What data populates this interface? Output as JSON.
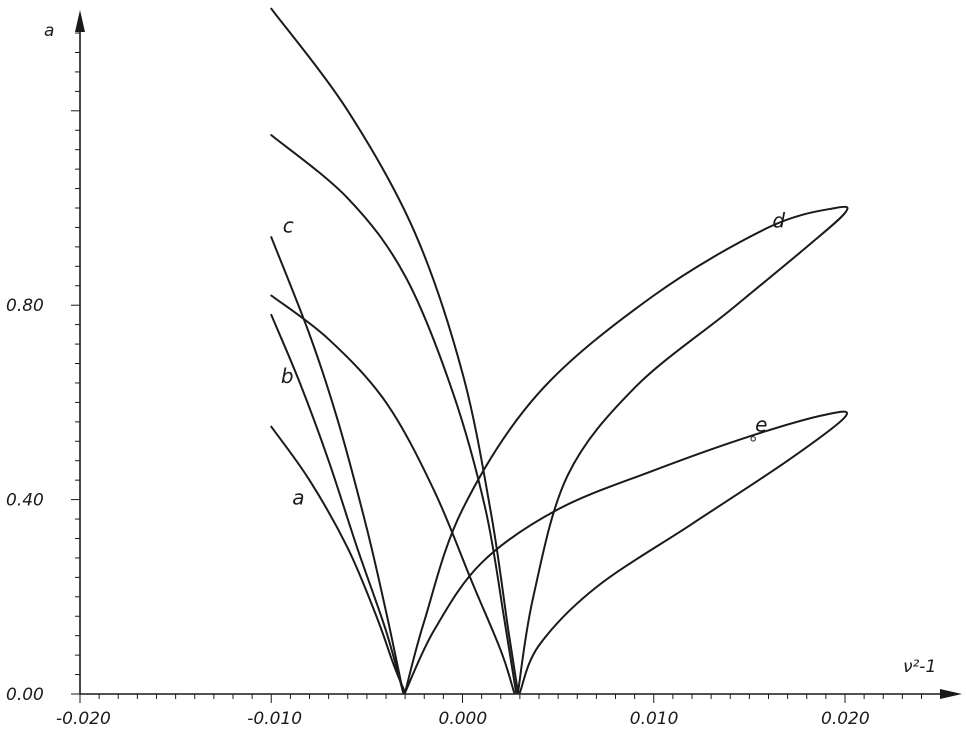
{
  "chart_data": {
    "type": "line",
    "title": "",
    "xlabel": "ν²-1",
    "ylabel": "a",
    "xlim": [
      -0.02,
      0.026
    ],
    "ylim": [
      0.0,
      1.4
    ],
    "grid": false,
    "xticks": [
      -0.02,
      -0.01,
      0.0,
      0.01,
      0.02
    ],
    "xtick_labels": [
      "-0.020",
      "-0.010",
      "0.000",
      "0.010",
      "0.020"
    ],
    "yticks": [
      0.0,
      0.4,
      0.8
    ],
    "ytick_labels": [
      "0.00",
      "0.40",
      "0.80"
    ],
    "curve_labels": [
      {
        "text": "a",
        "x": -0.0089,
        "y": 0.39
      },
      {
        "text": "b",
        "x": -0.0095,
        "y": 0.64
      },
      {
        "text": "c",
        "x": -0.0094,
        "y": 0.95
      },
      {
        "text": "d",
        "x": 0.0162,
        "y": 0.96
      },
      {
        "text": "e",
        "x": 0.0153,
        "y": 0.54
      }
    ],
    "series": [
      {
        "points": [
          [
            -0.01,
            0.55
          ],
          [
            -0.008,
            0.44
          ],
          [
            -0.006,
            0.3
          ],
          [
            -0.0045,
            0.16
          ],
          [
            -0.0036,
            0.06
          ],
          [
            -0.003,
            0.003
          ]
        ]
      },
      {
        "points": [
          [
            -0.01,
            0.78
          ],
          [
            -0.0085,
            0.64
          ],
          [
            -0.007,
            0.48
          ],
          [
            -0.0055,
            0.3
          ],
          [
            -0.004,
            0.13
          ],
          [
            -0.0031,
            0.003
          ]
        ]
      },
      {
        "points": [
          [
            -0.01,
            0.94
          ],
          [
            -0.008,
            0.74
          ],
          [
            -0.0065,
            0.56
          ],
          [
            -0.005,
            0.34
          ],
          [
            -0.004,
            0.17
          ],
          [
            -0.0031,
            0.003
          ]
        ]
      },
      {
        "points": [
          [
            -0.01,
            0.82
          ],
          [
            -0.007,
            0.73
          ],
          [
            -0.004,
            0.6
          ],
          [
            -0.0015,
            0.42
          ],
          [
            0.0005,
            0.23
          ],
          [
            0.002,
            0.09
          ],
          [
            0.0027,
            0.003
          ]
        ]
      },
      {
        "points": [
          [
            -0.01,
            1.15
          ],
          [
            -0.006,
            1.02
          ],
          [
            -0.003,
            0.86
          ],
          [
            -0.0005,
            0.62
          ],
          [
            0.0012,
            0.38
          ],
          [
            0.0022,
            0.15
          ],
          [
            0.0028,
            0.003
          ]
        ]
      },
      {
        "points": [
          [
            -0.01,
            1.41
          ],
          [
            -0.006,
            1.2
          ],
          [
            -0.0025,
            0.95
          ],
          [
            0.0,
            0.66
          ],
          [
            0.0015,
            0.37
          ],
          [
            0.0024,
            0.13
          ],
          [
            0.0029,
            0.003
          ]
        ]
      },
      {
        "points": [
          [
            -0.003,
            0.003
          ],
          [
            -0.002,
            0.15
          ],
          [
            0.0,
            0.38
          ],
          [
            0.004,
            0.62
          ],
          [
            0.01,
            0.82
          ],
          [
            0.016,
            0.96
          ],
          [
            0.0195,
            1.0
          ],
          [
            0.02,
            0.99
          ],
          [
            0.018,
            0.92
          ],
          [
            0.014,
            0.79
          ],
          [
            0.009,
            0.63
          ],
          [
            0.0055,
            0.45
          ],
          [
            0.0037,
            0.2
          ],
          [
            0.0029,
            0.003
          ]
        ]
      },
      {
        "points": [
          [
            -0.003,
            0.003
          ],
          [
            -0.0015,
            0.13
          ],
          [
            0.001,
            0.27
          ],
          [
            0.005,
            0.38
          ],
          [
            0.01,
            0.46
          ],
          [
            0.015,
            0.53
          ],
          [
            0.019,
            0.575
          ],
          [
            0.02,
            0.57
          ],
          [
            0.017,
            0.48
          ],
          [
            0.012,
            0.35
          ],
          [
            0.007,
            0.22
          ],
          [
            0.004,
            0.1
          ],
          [
            0.003,
            0.003
          ]
        ]
      }
    ]
  }
}
